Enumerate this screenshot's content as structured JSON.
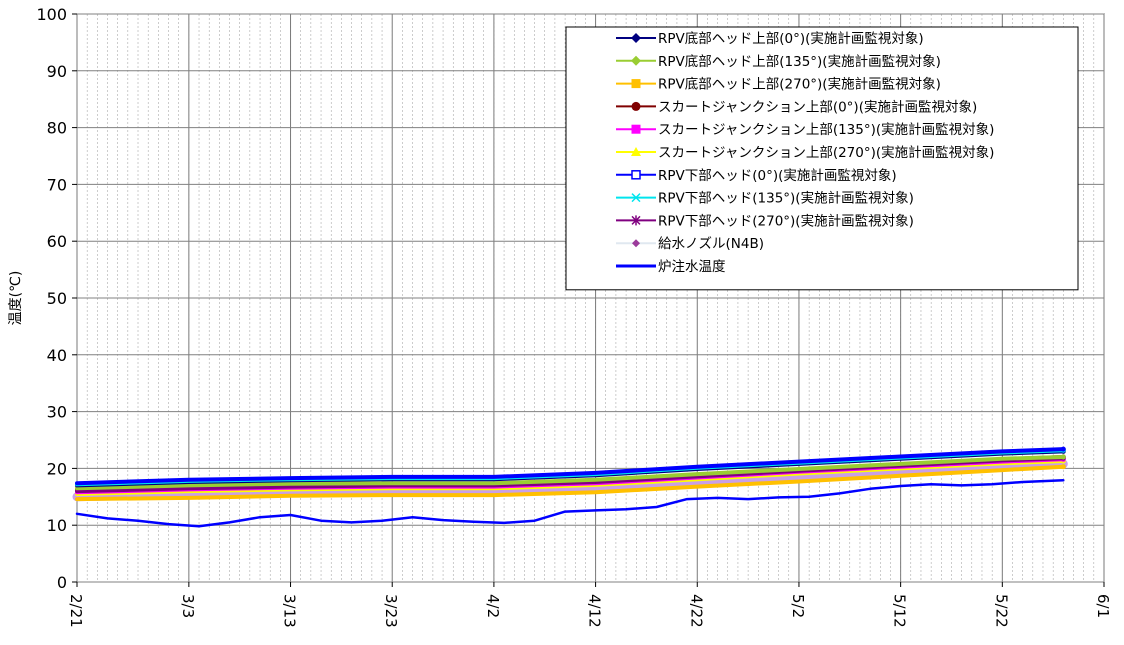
{
  "chart_data": {
    "type": "line",
    "title": "",
    "xlabel": "",
    "ylabel": "温度(℃)",
    "ylim": [
      0,
      100
    ],
    "yticks": [
      "0",
      "10",
      "20",
      "30",
      "40",
      "50",
      "60",
      "70",
      "80",
      "90",
      "100"
    ],
    "xlim": [
      "2/21",
      "6/1"
    ],
    "xtick_labels": [
      "2/21",
      "3/3",
      "3/13",
      "3/23",
      "4/2",
      "4/12",
      "4/22",
      "5/2",
      "5/12",
      "5/22",
      "6/1"
    ],
    "grid": true,
    "legend_position": "top-right",
    "series": [
      {
        "name": "RPV底部ヘッド上部(0°)(実施計画監視対象)",
        "color": "#000080",
        "marker": "diamond",
        "x": [
          "2/21",
          "3/3",
          "3/13",
          "3/23",
          "4/2",
          "4/12",
          "4/22",
          "5/2",
          "5/12",
          "5/22",
          "5/28"
        ],
        "y": [
          17.0,
          17.6,
          17.9,
          18.1,
          18.1,
          18.8,
          19.9,
          20.8,
          21.7,
          22.6,
          23.0
        ]
      },
      {
        "name": "RPV底部ヘッド上部(135°)(実施計画監視対象)",
        "color": "#9acd32",
        "marker": "diamond",
        "x": [
          "2/21",
          "3/3",
          "3/13",
          "3/23",
          "4/2",
          "4/12",
          "4/22",
          "5/2",
          "5/12",
          "5/22",
          "5/28"
        ],
        "y": [
          16.5,
          17.0,
          17.3,
          17.4,
          17.4,
          18.0,
          19.0,
          19.9,
          20.8,
          21.7,
          22.0
        ]
      },
      {
        "name": "RPV底部ヘッド上部(270°)(実施計画監視対象)",
        "color": "#ffc000",
        "marker": "square",
        "x": [
          "2/21",
          "3/3",
          "3/13",
          "3/23",
          "4/2",
          "4/12",
          "4/22",
          "5/2",
          "5/12",
          "5/22",
          "5/28"
        ],
        "y": [
          14.6,
          14.8,
          15.2,
          15.3,
          15.3,
          15.8,
          16.8,
          17.7,
          18.7,
          19.7,
          20.3
        ]
      },
      {
        "name": "スカートジャンクション上部(0°)(実施計画監視対象)",
        "color": "#800000",
        "marker": "circle",
        "x": [
          "2/21",
          "3/3",
          "3/13",
          "3/23",
          "4/2",
          "4/12",
          "4/22",
          "5/2",
          "5/12",
          "5/22",
          "5/28"
        ],
        "y": [
          16.2,
          16.7,
          17.0,
          17.2,
          17.2,
          17.8,
          18.8,
          19.8,
          20.7,
          21.6,
          22.0
        ]
      },
      {
        "name": "スカートジャンクション上部(135°)(実施計画監視対象)",
        "color": "#ff00ff",
        "marker": "square",
        "x": [
          "2/21",
          "3/3",
          "3/13",
          "3/23",
          "4/2",
          "4/12",
          "4/22",
          "5/2",
          "5/12",
          "5/22",
          "5/28"
        ],
        "y": [
          15.8,
          16.3,
          16.6,
          16.8,
          16.8,
          17.4,
          18.4,
          19.4,
          20.3,
          21.2,
          21.6
        ]
      },
      {
        "name": "スカートジャンクション上部(270°)(実施計画監視対象)",
        "color": "#ffff00",
        "marker": "triangle",
        "x": [
          "2/21",
          "3/3",
          "3/13",
          "3/23",
          "4/2",
          "4/12",
          "4/22",
          "5/2",
          "5/12",
          "5/22",
          "5/28"
        ],
        "y": [
          15.5,
          16.0,
          16.3,
          16.5,
          16.5,
          17.1,
          18.1,
          19.1,
          20.0,
          20.9,
          21.3
        ]
      },
      {
        "name": "RPV下部ヘッド(0°)(実施計画監視対象)",
        "color": "#0000ff",
        "marker": "square-open",
        "x": [
          "2/21",
          "3/3",
          "3/13",
          "3/23",
          "4/2",
          "4/12",
          "4/22",
          "5/2",
          "5/12",
          "5/22",
          "5/28"
        ],
        "y": [
          17.4,
          18.0,
          18.3,
          18.5,
          18.5,
          19.2,
          20.3,
          21.2,
          22.1,
          23.0,
          23.4
        ]
      },
      {
        "name": "RPV下部ヘッド(135°)(実施計画監視対象)",
        "color": "#00e5ee",
        "marker": "x",
        "x": [
          "2/21",
          "3/3",
          "3/13",
          "3/23",
          "4/2",
          "4/12",
          "4/22",
          "5/2",
          "5/12",
          "5/22",
          "5/28"
        ],
        "y": [
          17.2,
          17.8,
          18.1,
          18.3,
          18.3,
          19.0,
          20.1,
          21.0,
          21.9,
          22.8,
          23.2
        ]
      },
      {
        "name": "RPV下部ヘッド(270°)(実施計画監視対象)",
        "color": "#800080",
        "marker": "star",
        "x": [
          "2/21",
          "3/3",
          "3/13",
          "3/23",
          "4/2",
          "4/12",
          "4/22",
          "5/2",
          "5/12",
          "5/22",
          "5/28"
        ],
        "y": [
          16.0,
          16.5,
          16.8,
          17.0,
          17.0,
          17.6,
          18.6,
          19.6,
          20.5,
          21.4,
          21.8
        ]
      },
      {
        "name": "給水ノズル(N4B)",
        "color": "#c8a0e6",
        "marker": "diamond-small",
        "x": [
          "2/21",
          "3/3",
          "3/13",
          "3/23",
          "4/2",
          "4/12",
          "4/22",
          "5/2",
          "5/12",
          "5/22",
          "5/28"
        ],
        "y": [
          15.0,
          15.5,
          15.8,
          16.0,
          16.0,
          16.6,
          17.6,
          18.6,
          19.5,
          20.4,
          20.8
        ]
      },
      {
        "name": "炉注水温度",
        "color": "#0000ff",
        "marker": "none",
        "x": [
          "2/21",
          "2/24",
          "2/27",
          "3/1",
          "3/4",
          "3/7",
          "3/10",
          "3/13",
          "3/16",
          "3/19",
          "3/22",
          "3/25",
          "3/28",
          "3/31",
          "4/3",
          "4/6",
          "4/9",
          "4/12",
          "4/15",
          "4/18",
          "4/21",
          "4/24",
          "4/27",
          "4/30",
          "5/3",
          "5/6",
          "5/9",
          "5/12",
          "5/15",
          "5/18",
          "5/21",
          "5/24",
          "5/28"
        ],
        "y": [
          12.0,
          11.2,
          10.8,
          10.2,
          9.8,
          10.5,
          11.4,
          11.8,
          10.8,
          10.5,
          10.8,
          11.4,
          10.9,
          10.6,
          10.4,
          10.8,
          12.4,
          12.6,
          12.8,
          13.2,
          14.6,
          14.8,
          14.6,
          14.9,
          15.0,
          15.6,
          16.4,
          16.9,
          17.2,
          17.0,
          17.2,
          17.6,
          17.9
        ]
      }
    ]
  }
}
